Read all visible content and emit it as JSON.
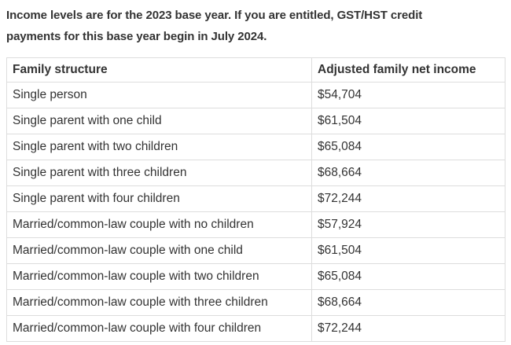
{
  "intro": {
    "text": "Income levels are for the 2023 base year. If you are entitled, GST/HST credit\npayments for this base year begin in July 2024."
  },
  "table": {
    "columns": [
      "Family structure",
      "Adjusted family net income"
    ],
    "rows": [
      {
        "family_structure": "Single person",
        "adjusted_family_net_income": "$54,704"
      },
      {
        "family_structure": "Single parent with one child",
        "adjusted_family_net_income": "$61,504"
      },
      {
        "family_structure": "Single parent with two children",
        "adjusted_family_net_income": "$65,084"
      },
      {
        "family_structure": "Single parent with three children",
        "adjusted_family_net_income": "$68,664"
      },
      {
        "family_structure": "Single parent with four children",
        "adjusted_family_net_income": "$72,244"
      },
      {
        "family_structure": "Married/common-law couple with no children",
        "adjusted_family_net_income": "$57,924"
      },
      {
        "family_structure": "Married/common-law couple with one child",
        "adjusted_family_net_income": "$61,504"
      },
      {
        "family_structure": "Married/common-law couple with two children",
        "adjusted_family_net_income": "$65,084"
      },
      {
        "family_structure": "Married/common-law couple with three children",
        "adjusted_family_net_income": "$68,664"
      },
      {
        "family_structure": "Married/common-law couple with four children",
        "adjusted_family_net_income": "$72,244"
      }
    ]
  },
  "colors": {
    "text": "#333333",
    "border": "#dddddd",
    "background": "#ffffff"
  }
}
